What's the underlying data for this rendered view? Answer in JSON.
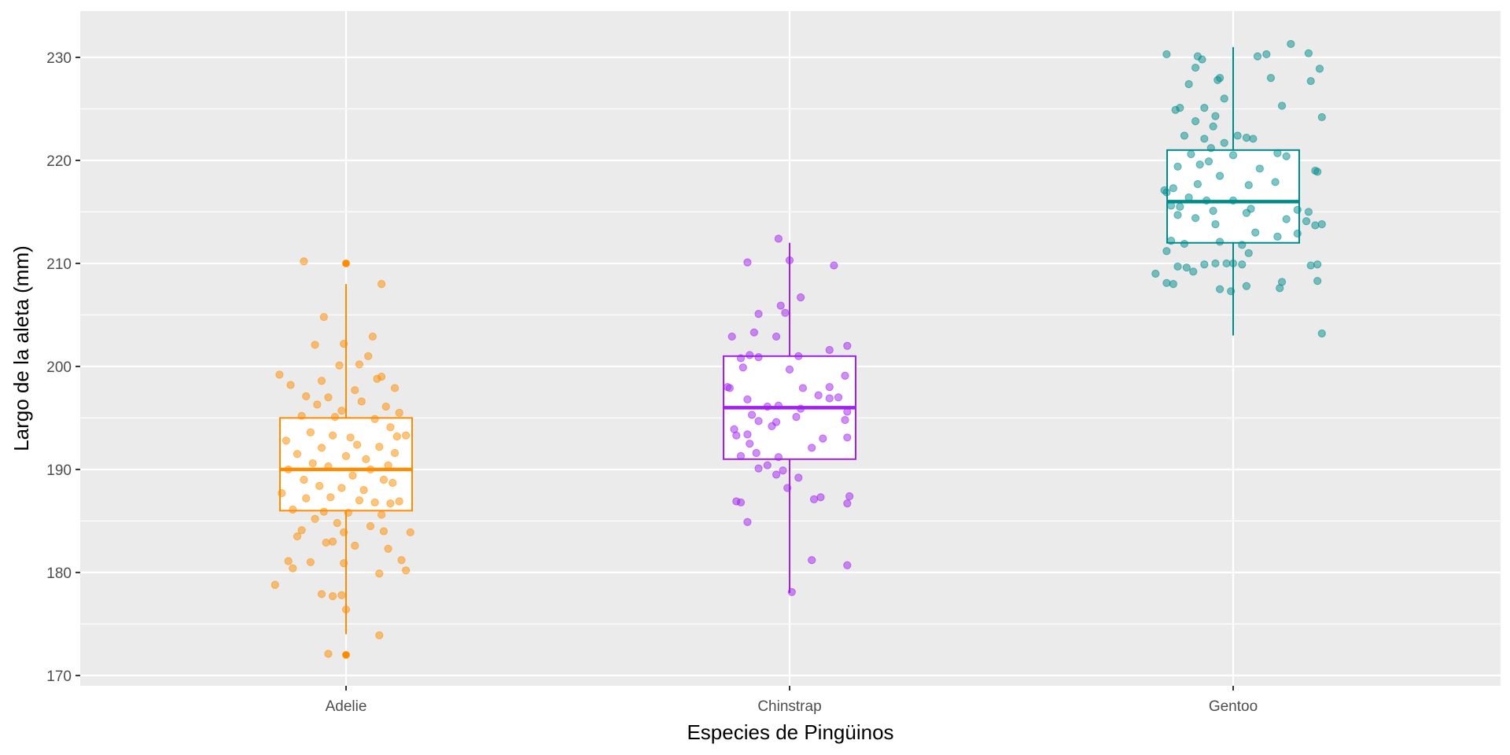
{
  "chart_data": {
    "type": "boxplot",
    "title": "",
    "xlabel": "Especies de Pingüinos",
    "ylabel": "Largo de la aleta (mm)",
    "ylim": [
      169,
      234.5
    ],
    "y_ticks": [
      170,
      180,
      190,
      200,
      210,
      220,
      230
    ],
    "y_minor_ticks": [
      175,
      185,
      195,
      205,
      215,
      225
    ],
    "categories": [
      "Adelie",
      "Chinstrap",
      "Gentoo"
    ],
    "grid": true,
    "legend": "none",
    "colors": {
      "panel_background": "#ebebeb",
      "grid": "#ffffff",
      "Adelie": "#ff8c00",
      "Chinstrap": "#a020f0",
      "Gentoo": "#008b8b"
    },
    "series": [
      {
        "category": "Adelie",
        "box": {
          "whisker_low": 174,
          "q1": 186,
          "median": 190,
          "q3": 195,
          "whisker_high": 208
        },
        "outliers": [
          172,
          210
        ],
        "points": [
          {
            "x": -0.19,
            "y": 210.2
          },
          {
            "x": -0.1,
            "y": 204.8
          },
          {
            "x": -0.14,
            "y": 202.1
          },
          {
            "x": -0.01,
            "y": 202.2
          },
          {
            "x": 0.06,
            "y": 200.2
          },
          {
            "x": 0.12,
            "y": 202.9
          },
          {
            "x": 0.1,
            "y": 201.0
          },
          {
            "x": -0.03,
            "y": 200.1
          },
          {
            "x": -0.18,
            "y": 197.1
          },
          {
            "x": -0.08,
            "y": 197.0
          },
          {
            "x": 0.04,
            "y": 197.7
          },
          {
            "x": 0.22,
            "y": 197.9
          },
          {
            "x": 0.16,
            "y": 199.0
          },
          {
            "x": -0.11,
            "y": 198.6
          },
          {
            "x": 0.14,
            "y": 198.8
          },
          {
            "x": -0.3,
            "y": 199.2
          },
          {
            "x": -0.25,
            "y": 198.2
          },
          {
            "x": -0.13,
            "y": 196.3
          },
          {
            "x": -0.02,
            "y": 195.7
          },
          {
            "x": 0.07,
            "y": 196.6
          },
          {
            "x": 0.18,
            "y": 196.1
          },
          {
            "x": 0.24,
            "y": 195.5
          },
          {
            "x": -0.2,
            "y": 195.2
          },
          {
            "x": -0.05,
            "y": 195.1
          },
          {
            "x": 0.13,
            "y": 194.9
          },
          {
            "x": 0.2,
            "y": 194.1
          },
          {
            "x": -0.16,
            "y": 193.6
          },
          {
            "x": -0.06,
            "y": 193.3
          },
          {
            "x": 0.02,
            "y": 193.1
          },
          {
            "x": 0.23,
            "y": 193.2
          },
          {
            "x": -0.27,
            "y": 192.8
          },
          {
            "x": -0.11,
            "y": 192.1
          },
          {
            "x": 0.05,
            "y": 192.4
          },
          {
            "x": 0.15,
            "y": 192.2
          },
          {
            "x": -0.22,
            "y": 191.5
          },
          {
            "x": 0.0,
            "y": 191.3
          },
          {
            "x": 0.09,
            "y": 191.0
          },
          {
            "x": 0.19,
            "y": 190.4
          },
          {
            "x": -0.15,
            "y": 190.6
          },
          {
            "x": -0.08,
            "y": 190.3
          },
          {
            "x": 0.11,
            "y": 190.0
          },
          {
            "x": -0.26,
            "y": 190.0
          },
          {
            "x": -0.19,
            "y": 189.0
          },
          {
            "x": 0.03,
            "y": 189.4
          },
          {
            "x": 0.17,
            "y": 189.0
          },
          {
            "x": 0.21,
            "y": 188.7
          },
          {
            "x": -0.12,
            "y": 188.4
          },
          {
            "x": -0.02,
            "y": 188.2
          },
          {
            "x": 0.08,
            "y": 188.0
          },
          {
            "x": -0.29,
            "y": 187.7
          },
          {
            "x": -0.18,
            "y": 187.2
          },
          {
            "x": -0.07,
            "y": 187.3
          },
          {
            "x": 0.06,
            "y": 187.0
          },
          {
            "x": 0.13,
            "y": 186.8
          },
          {
            "x": 0.24,
            "y": 186.9
          },
          {
            "x": -0.24,
            "y": 186.1
          },
          {
            "x": -0.1,
            "y": 185.9
          },
          {
            "x": 0.01,
            "y": 185.8
          },
          {
            "x": 0.16,
            "y": 185.6
          },
          {
            "x": -0.14,
            "y": 185.2
          },
          {
            "x": -0.04,
            "y": 184.8
          },
          {
            "x": 0.11,
            "y": 184.5
          },
          {
            "x": -0.2,
            "y": 184.1
          },
          {
            "x": -0.01,
            "y": 183.9
          },
          {
            "x": 0.17,
            "y": 184.0
          },
          {
            "x": 0.29,
            "y": 183.9
          },
          {
            "x": -0.22,
            "y": 183.5
          },
          {
            "x": -0.09,
            "y": 182.9
          },
          {
            "x": 0.04,
            "y": 182.6
          },
          {
            "x": 0.19,
            "y": 182.3
          },
          {
            "x": -0.06,
            "y": 183.0
          },
          {
            "x": -0.26,
            "y": 181.1
          },
          {
            "x": -0.16,
            "y": 181.0
          },
          {
            "x": -0.01,
            "y": 180.9
          },
          {
            "x": 0.25,
            "y": 181.2
          },
          {
            "x": 0.27,
            "y": 180.2
          },
          {
            "x": -0.24,
            "y": 180.4
          },
          {
            "x": 0.15,
            "y": 179.9
          },
          {
            "x": -0.32,
            "y": 178.8
          },
          {
            "x": -0.11,
            "y": 177.9
          },
          {
            "x": -0.06,
            "y": 177.7
          },
          {
            "x": -0.02,
            "y": 177.8
          },
          {
            "x": 0.0,
            "y": 176.4
          },
          {
            "x": 0.15,
            "y": 173.9
          },
          {
            "x": -0.08,
            "y": 172.1
          },
          {
            "x": 0.0,
            "y": 172.0
          },
          {
            "x": 0.0,
            "y": 210.0
          },
          {
            "x": 0.16,
            "y": 208.0
          },
          {
            "x": 0.27,
            "y": 193.3
          },
          {
            "x": 0.22,
            "y": 191.6
          },
          {
            "x": 0.2,
            "y": 186.7
          }
        ]
      },
      {
        "category": "Chinstrap",
        "box": {
          "whisker_low": 178,
          "q1": 191,
          "median": 196,
          "q3": 201,
          "whisker_high": 212
        },
        "outliers": [],
        "points": [
          {
            "x": -0.05,
            "y": 212.4
          },
          {
            "x": -0.19,
            "y": 210.1
          },
          {
            "x": 0.0,
            "y": 210.3
          },
          {
            "x": 0.2,
            "y": 209.8
          },
          {
            "x": 0.05,
            "y": 206.7
          },
          {
            "x": -0.04,
            "y": 205.9
          },
          {
            "x": -0.14,
            "y": 205.1
          },
          {
            "x": -0.02,
            "y": 205.2
          },
          {
            "x": -0.16,
            "y": 203.3
          },
          {
            "x": -0.26,
            "y": 202.9
          },
          {
            "x": -0.06,
            "y": 202.9
          },
          {
            "x": 0.26,
            "y": 202.0
          },
          {
            "x": 0.18,
            "y": 201.6
          },
          {
            "x": 0.04,
            "y": 201.0
          },
          {
            "x": -0.18,
            "y": 201.1
          },
          {
            "x": -0.22,
            "y": 200.8
          },
          {
            "x": -0.14,
            "y": 200.9
          },
          {
            "x": -0.21,
            "y": 199.9
          },
          {
            "x": 0.0,
            "y": 199.7
          },
          {
            "x": 0.25,
            "y": 199.1
          },
          {
            "x": 0.18,
            "y": 198.0
          },
          {
            "x": -0.28,
            "y": 198.0
          },
          {
            "x": -0.27,
            "y": 197.9
          },
          {
            "x": 0.06,
            "y": 197.9
          },
          {
            "x": 0.13,
            "y": 197.2
          },
          {
            "x": 0.22,
            "y": 197.0
          },
          {
            "x": -0.19,
            "y": 196.8
          },
          {
            "x": 0.18,
            "y": 196.9
          },
          {
            "x": -0.1,
            "y": 196.1
          },
          {
            "x": -0.05,
            "y": 196.2
          },
          {
            "x": 0.05,
            "y": 195.9
          },
          {
            "x": 0.26,
            "y": 195.6
          },
          {
            "x": -0.17,
            "y": 195.3
          },
          {
            "x": -0.14,
            "y": 194.7
          },
          {
            "x": -0.06,
            "y": 194.6
          },
          {
            "x": 0.03,
            "y": 195.1
          },
          {
            "x": -0.08,
            "y": 194.2
          },
          {
            "x": 0.25,
            "y": 194.8
          },
          {
            "x": -0.25,
            "y": 193.9
          },
          {
            "x": -0.24,
            "y": 193.3
          },
          {
            "x": -0.19,
            "y": 193.4
          },
          {
            "x": -0.18,
            "y": 192.5
          },
          {
            "x": 0.15,
            "y": 193.0
          },
          {
            "x": 0.26,
            "y": 193.1
          },
          {
            "x": 0.1,
            "y": 192.1
          },
          {
            "x": -0.15,
            "y": 191.6
          },
          {
            "x": -0.22,
            "y": 191.3
          },
          {
            "x": -0.05,
            "y": 191.2
          },
          {
            "x": -0.1,
            "y": 190.4
          },
          {
            "x": -0.14,
            "y": 190.1
          },
          {
            "x": -0.03,
            "y": 189.9
          },
          {
            "x": -0.06,
            "y": 189.5
          },
          {
            "x": 0.04,
            "y": 189.2
          },
          {
            "x": -0.01,
            "y": 188.2
          },
          {
            "x": 0.14,
            "y": 187.3
          },
          {
            "x": 0.11,
            "y": 187.1
          },
          {
            "x": 0.27,
            "y": 187.4
          },
          {
            "x": 0.26,
            "y": 186.7
          },
          {
            "x": -0.24,
            "y": 186.9
          },
          {
            "x": -0.22,
            "y": 186.8
          },
          {
            "x": -0.19,
            "y": 184.9
          },
          {
            "x": 0.1,
            "y": 181.2
          },
          {
            "x": 0.26,
            "y": 180.7
          },
          {
            "x": 0.01,
            "y": 178.1
          }
        ]
      },
      {
        "category": "Gentoo",
        "box": {
          "whisker_low": 203,
          "q1": 212,
          "median": 216,
          "q3": 221,
          "whisker_high": 231
        },
        "outliers": [],
        "points": [
          {
            "x": -0.3,
            "y": 230.3
          },
          {
            "x": -0.16,
            "y": 230.1
          },
          {
            "x": -0.14,
            "y": 229.8
          },
          {
            "x": -0.17,
            "y": 229.0
          },
          {
            "x": 0.11,
            "y": 230.1
          },
          {
            "x": 0.15,
            "y": 230.3
          },
          {
            "x": 0.26,
            "y": 231.3
          },
          {
            "x": 0.34,
            "y": 230.4
          },
          {
            "x": 0.39,
            "y": 228.9
          },
          {
            "x": 0.17,
            "y": 228.0
          },
          {
            "x": 0.35,
            "y": 227.7
          },
          {
            "x": -0.06,
            "y": 228.0
          },
          {
            "x": -0.07,
            "y": 227.8
          },
          {
            "x": -0.2,
            "y": 227.4
          },
          {
            "x": -0.04,
            "y": 226.0
          },
          {
            "x": 0.22,
            "y": 225.3
          },
          {
            "x": -0.26,
            "y": 224.9
          },
          {
            "x": -0.13,
            "y": 225.1
          },
          {
            "x": -0.24,
            "y": 225.1
          },
          {
            "x": -0.08,
            "y": 224.3
          },
          {
            "x": 0.4,
            "y": 224.2
          },
          {
            "x": -0.17,
            "y": 223.8
          },
          {
            "x": -0.09,
            "y": 223.3
          },
          {
            "x": -0.22,
            "y": 222.4
          },
          {
            "x": -0.13,
            "y": 222.1
          },
          {
            "x": 0.02,
            "y": 222.4
          },
          {
            "x": 0.06,
            "y": 222.2
          },
          {
            "x": 0.09,
            "y": 222.1
          },
          {
            "x": -0.04,
            "y": 221.7
          },
          {
            "x": -0.1,
            "y": 221.2
          },
          {
            "x": -0.19,
            "y": 220.6
          },
          {
            "x": 0.0,
            "y": 220.5
          },
          {
            "x": 0.2,
            "y": 220.7
          },
          {
            "x": 0.24,
            "y": 220.4
          },
          {
            "x": -0.15,
            "y": 219.6
          },
          {
            "x": -0.11,
            "y": 219.9
          },
          {
            "x": -0.25,
            "y": 219.4
          },
          {
            "x": 0.12,
            "y": 219.2
          },
          {
            "x": 0.37,
            "y": 219.0
          },
          {
            "x": 0.38,
            "y": 218.9
          },
          {
            "x": -0.06,
            "y": 218.5
          },
          {
            "x": -0.27,
            "y": 217.3
          },
          {
            "x": -0.16,
            "y": 217.7
          },
          {
            "x": 0.07,
            "y": 217.6
          },
          {
            "x": 0.19,
            "y": 217.9
          },
          {
            "x": -0.31,
            "y": 217.1
          },
          {
            "x": -0.3,
            "y": 216.9
          },
          {
            "x": -0.2,
            "y": 216.4
          },
          {
            "x": -0.12,
            "y": 216.1
          },
          {
            "x": 0.0,
            "y": 216.1
          },
          {
            "x": -0.28,
            "y": 215.6
          },
          {
            "x": -0.24,
            "y": 215.5
          },
          {
            "x": -0.09,
            "y": 215.1
          },
          {
            "x": 0.08,
            "y": 215.3
          },
          {
            "x": 0.06,
            "y": 214.9
          },
          {
            "x": 0.29,
            "y": 215.2
          },
          {
            "x": 0.34,
            "y": 215.0
          },
          {
            "x": -0.25,
            "y": 214.7
          },
          {
            "x": -0.17,
            "y": 214.4
          },
          {
            "x": -0.08,
            "y": 213.8
          },
          {
            "x": 0.24,
            "y": 214.3
          },
          {
            "x": 0.33,
            "y": 214.1
          },
          {
            "x": 0.37,
            "y": 213.7
          },
          {
            "x": 0.4,
            "y": 213.8
          },
          {
            "x": 0.1,
            "y": 213.0
          },
          {
            "x": 0.29,
            "y": 212.9
          },
          {
            "x": 0.2,
            "y": 212.6
          },
          {
            "x": -0.06,
            "y": 212.1
          },
          {
            "x": 0.04,
            "y": 211.8
          },
          {
            "x": -0.22,
            "y": 211.9
          },
          {
            "x": -0.28,
            "y": 212.2
          },
          {
            "x": -0.3,
            "y": 211.2
          },
          {
            "x": 0.07,
            "y": 211.0
          },
          {
            "x": 0.38,
            "y": 209.9
          },
          {
            "x": 0.35,
            "y": 209.8
          },
          {
            "x": -0.21,
            "y": 209.6
          },
          {
            "x": -0.18,
            "y": 209.2
          },
          {
            "x": -0.08,
            "y": 210.0
          },
          {
            "x": -0.03,
            "y": 210.0
          },
          {
            "x": 0.0,
            "y": 210.0
          },
          {
            "x": 0.04,
            "y": 209.9
          },
          {
            "x": -0.13,
            "y": 209.9
          },
          {
            "x": -0.25,
            "y": 209.7
          },
          {
            "x": -0.35,
            "y": 209.0
          },
          {
            "x": 0.22,
            "y": 208.2
          },
          {
            "x": 0.38,
            "y": 208.3
          },
          {
            "x": 0.21,
            "y": 207.6
          },
          {
            "x": 0.06,
            "y": 207.8
          },
          {
            "x": -0.06,
            "y": 207.5
          },
          {
            "x": -0.01,
            "y": 207.3
          },
          {
            "x": -0.3,
            "y": 208.1
          },
          {
            "x": -0.27,
            "y": 208.0
          },
          {
            "x": 0.4,
            "y": 203.2
          }
        ]
      }
    ]
  }
}
